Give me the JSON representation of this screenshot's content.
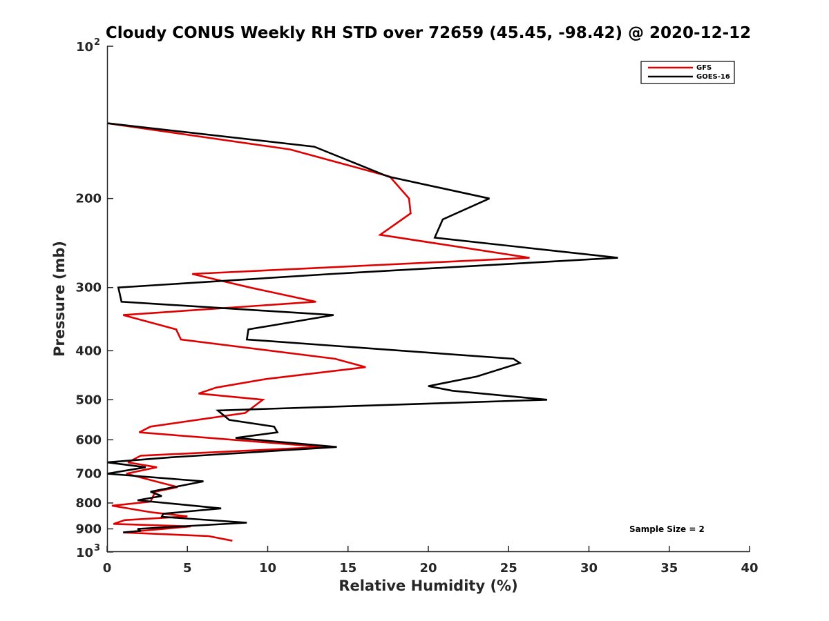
{
  "chart_data": {
    "type": "line",
    "title": "Cloudy CONUS Weekly RH STD over 72659 (45.45, -98.42) @ 2020-12-12",
    "xlabel": "Relative Humidity (%)",
    "ylabel": "Pressure (mb)",
    "xlim": [
      0,
      40
    ],
    "ylim": [
      100,
      1000
    ],
    "y_scale": "log",
    "y_reversed": true,
    "x_ticks": [
      "0",
      "5",
      "10",
      "15",
      "20",
      "25",
      "30",
      "35",
      "40"
    ],
    "y_ticks": [
      {
        "value": 100,
        "base": "10",
        "exp": "2"
      },
      {
        "value": 200,
        "label": "200"
      },
      {
        "value": 300,
        "label": "300"
      },
      {
        "value": 400,
        "label": "400"
      },
      {
        "value": 500,
        "label": "500"
      },
      {
        "value": 600,
        "label": "600"
      },
      {
        "value": 700,
        "label": "700"
      },
      {
        "value": 800,
        "label": "800"
      },
      {
        "value": 900,
        "label": "900"
      },
      {
        "value": 1000,
        "base": "10",
        "exp": "3"
      }
    ],
    "grid": false,
    "legend_position": "top-right",
    "annotation": "Sample Size = 2",
    "series": [
      {
        "name": "GFS",
        "color": "#e00000",
        "points": [
          [
            0.0,
            142
          ],
          [
            11.4,
            160
          ],
          [
            17.6,
            181
          ],
          [
            18.8,
            200
          ],
          [
            18.9,
            214
          ],
          [
            17.0,
            236
          ],
          [
            26.3,
            262
          ],
          [
            5.3,
            282
          ],
          [
            8.9,
            300
          ],
          [
            13.0,
            320
          ],
          [
            1.0,
            340
          ],
          [
            4.3,
            363
          ],
          [
            4.6,
            380
          ],
          [
            14.2,
            415
          ],
          [
            16.1,
            431
          ],
          [
            9.9,
            455
          ],
          [
            6.8,
            473
          ],
          [
            5.7,
            486
          ],
          [
            9.7,
            500
          ],
          [
            8.6,
            531
          ],
          [
            2.7,
            565
          ],
          [
            2.0,
            580
          ],
          [
            13.5,
            620
          ],
          [
            2.1,
            645
          ],
          [
            1.3,
            665
          ],
          [
            3.1,
            680
          ],
          [
            1.2,
            700
          ],
          [
            3.6,
            733
          ],
          [
            4.4,
            744
          ],
          [
            3.0,
            760
          ],
          [
            2.7,
            795
          ],
          [
            0.3,
            810
          ],
          [
            2.8,
            835
          ],
          [
            5.0,
            850
          ],
          [
            1.1,
            865
          ],
          [
            0.4,
            880
          ],
          [
            5.2,
            890
          ],
          [
            1.0,
            915
          ],
          [
            6.3,
            930
          ],
          [
            7.8,
            950
          ]
        ]
      },
      {
        "name": "GOES-16",
        "color": "#000000",
        "points": [
          [
            0.0,
            142
          ],
          [
            12.9,
            158
          ],
          [
            17.5,
            181
          ],
          [
            23.8,
            200
          ],
          [
            20.9,
            220
          ],
          [
            20.4,
            239
          ],
          [
            31.8,
            262
          ],
          [
            14.0,
            282
          ],
          [
            0.7,
            300
          ],
          [
            0.9,
            320
          ],
          [
            14.1,
            340
          ],
          [
            8.8,
            363
          ],
          [
            8.7,
            380
          ],
          [
            25.3,
            415
          ],
          [
            25.7,
            423
          ],
          [
            23.0,
            450
          ],
          [
            20.0,
            470
          ],
          [
            21.5,
            480
          ],
          [
            27.4,
            500
          ],
          [
            6.9,
            525
          ],
          [
            7.6,
            548
          ],
          [
            10.4,
            565
          ],
          [
            10.6,
            580
          ],
          [
            8.0,
            595
          ],
          [
            14.3,
            620
          ],
          [
            3.9,
            650
          ],
          [
            0.0,
            665
          ],
          [
            2.4,
            680
          ],
          [
            0.0,
            700
          ],
          [
            6.0,
            725
          ],
          [
            2.7,
            760
          ],
          [
            3.4,
            775
          ],
          [
            1.9,
            790
          ],
          [
            7.1,
            820
          ],
          [
            3.5,
            840
          ],
          [
            3.4,
            852
          ],
          [
            8.7,
            875
          ],
          [
            1.9,
            900
          ],
          [
            2.1,
            908
          ],
          [
            1.0,
            915
          ]
        ]
      }
    ]
  }
}
